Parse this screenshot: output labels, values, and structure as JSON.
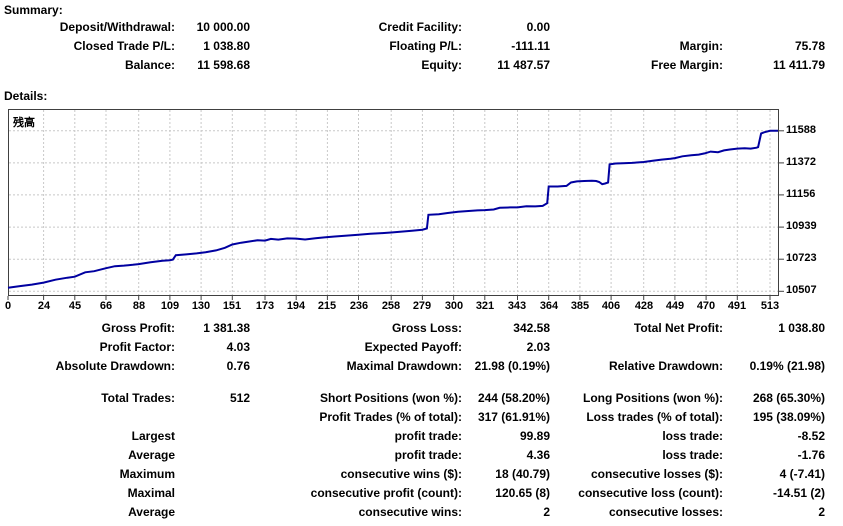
{
  "summary": {
    "heading": "Summary:",
    "rows": [
      {
        "c1l": "Deposit/Withdrawal:",
        "c1v": "10 000.00",
        "c2l": "Credit Facility:",
        "c2v": "0.00",
        "c3l": "",
        "c3v": ""
      },
      {
        "c1l": "Closed Trade P/L:",
        "c1v": "1 038.80",
        "c2l": "Floating P/L:",
        "c2v": "-111.11",
        "c3l": "Margin:",
        "c3v": "75.78"
      },
      {
        "c1l": "Balance:",
        "c1v": "11 598.68",
        "c2l": "Equity:",
        "c2v": "11 487.57",
        "c3l": "Free Margin:",
        "c3v": "11 411.79"
      }
    ]
  },
  "details": {
    "heading": "Details:",
    "block1": [
      {
        "c1l": "Gross Profit:",
        "c1v": "1 381.38",
        "c2l": "Gross Loss:",
        "c2v": "342.58",
        "c3l": "Total Net Profit:",
        "c3v": "1 038.80"
      },
      {
        "c1l": "Profit Factor:",
        "c1v": "4.03",
        "c2l": "Expected Payoff:",
        "c2v": "2.03",
        "c3l": "",
        "c3v": ""
      },
      {
        "c1l": "Absolute Drawdown:",
        "c1v": "0.76",
        "c2l": "Maximal Drawdown:",
        "c2v": "21.98 (0.19%)",
        "c3l": "Relative Drawdown:",
        "c3v": "0.19% (21.98)"
      }
    ],
    "block2": [
      {
        "c1l": "Total Trades:",
        "c1v": "512",
        "c2l": "Short Positions (won %):",
        "c2v": "244 (58.20%)",
        "c3l": "Long Positions (won %):",
        "c3v": "268 (65.30%)"
      },
      {
        "c1l": "",
        "c1v": "",
        "c2l": "Profit Trades (% of total):",
        "c2v": "317 (61.91%)",
        "c3l": "Loss trades (% of total):",
        "c3v": "195 (38.09%)"
      },
      {
        "c1l": "Largest",
        "c1v": "",
        "c2l": "profit trade:",
        "c2v": "99.89",
        "c3l": "loss trade:",
        "c3v": "-8.52"
      },
      {
        "c1l": "Average",
        "c1v": "",
        "c2l": "profit trade:",
        "c2v": "4.36",
        "c3l": "loss trade:",
        "c3v": "-1.76"
      },
      {
        "c1l": "Maximum",
        "c1v": "",
        "c2l": "consecutive wins ($):",
        "c2v": "18 (40.79)",
        "c3l": "consecutive losses ($):",
        "c3v": "4 (-7.41)"
      },
      {
        "c1l": "Maximal",
        "c1v": "",
        "c2l": "consecutive profit (count):",
        "c2v": "120.65 (8)",
        "c3l": "consecutive loss (count):",
        "c3v": "-14.51 (2)"
      },
      {
        "c1l": "Average",
        "c1v": "",
        "c2l": "consecutive wins:",
        "c2v": "2",
        "c3l": "consecutive losses:",
        "c3v": "2"
      }
    ]
  },
  "chart_data": {
    "type": "line",
    "title": "残高",
    "series_name": "Balance",
    "xlim": [
      0,
      513
    ],
    "ylim": [
      10475,
      11735
    ],
    "x_ticks": [
      0,
      24,
      45,
      66,
      88,
      109,
      130,
      151,
      173,
      194,
      215,
      236,
      258,
      279,
      300,
      321,
      343,
      364,
      385,
      406,
      428,
      449,
      470,
      491,
      513
    ],
    "y_ticks": [
      11588,
      11372,
      11156,
      10939,
      10723,
      10507
    ],
    "grid": true,
    "legend_position": "none",
    "line_color": "#0000A0",
    "grid_color": "#C8C8C8",
    "border_color": "#404040",
    "points": [
      [
        0,
        10530
      ],
      [
        8,
        10542
      ],
      [
        16,
        10552
      ],
      [
        24,
        10565
      ],
      [
        32,
        10585
      ],
      [
        40,
        10598
      ],
      [
        45,
        10605
      ],
      [
        52,
        10635
      ],
      [
        58,
        10642
      ],
      [
        66,
        10662
      ],
      [
        72,
        10676
      ],
      [
        78,
        10680
      ],
      [
        84,
        10685
      ],
      [
        88,
        10690
      ],
      [
        96,
        10702
      ],
      [
        104,
        10712
      ],
      [
        109,
        10716
      ],
      [
        111,
        10720
      ],
      [
        113,
        10750
      ],
      [
        120,
        10755
      ],
      [
        127,
        10762
      ],
      [
        133,
        10770
      ],
      [
        140,
        10782
      ],
      [
        146,
        10800
      ],
      [
        151,
        10822
      ],
      [
        157,
        10834
      ],
      [
        163,
        10843
      ],
      [
        168,
        10850
      ],
      [
        173,
        10848
      ],
      [
        177,
        10860
      ],
      [
        182,
        10855
      ],
      [
        188,
        10863
      ],
      [
        194,
        10862
      ],
      [
        200,
        10856
      ],
      [
        207,
        10864
      ],
      [
        213,
        10870
      ],
      [
        220,
        10876
      ],
      [
        228,
        10882
      ],
      [
        236,
        10888
      ],
      [
        244,
        10895
      ],
      [
        252,
        10899
      ],
      [
        258,
        10903
      ],
      [
        265,
        10909
      ],
      [
        272,
        10915
      ],
      [
        279,
        10922
      ],
      [
        282,
        10930
      ],
      [
        283,
        11022
      ],
      [
        290,
        11026
      ],
      [
        296,
        11034
      ],
      [
        303,
        11042
      ],
      [
        310,
        11048
      ],
      [
        316,
        11052
      ],
      [
        321,
        11054
      ],
      [
        327,
        11058
      ],
      [
        331,
        11069
      ],
      [
        338,
        11072
      ],
      [
        343,
        11072
      ],
      [
        349,
        11080
      ],
      [
        355,
        11079
      ],
      [
        360,
        11082
      ],
      [
        363,
        11100
      ],
      [
        364,
        11213
      ],
      [
        370,
        11213
      ],
      [
        376,
        11217
      ],
      [
        379,
        11240
      ],
      [
        383,
        11247
      ],
      [
        388,
        11250
      ],
      [
        393,
        11252
      ],
      [
        396,
        11250
      ],
      [
        398,
        11243
      ],
      [
        400,
        11228
      ],
      [
        402,
        11233
      ],
      [
        404,
        11240
      ],
      [
        405,
        11362
      ],
      [
        409,
        11368
      ],
      [
        414,
        11370
      ],
      [
        420,
        11372
      ],
      [
        428,
        11378
      ],
      [
        434,
        11386
      ],
      [
        440,
        11394
      ],
      [
        446,
        11400
      ],
      [
        449,
        11404
      ],
      [
        454,
        11416
      ],
      [
        460,
        11424
      ],
      [
        465,
        11428
      ],
      [
        469,
        11436
      ],
      [
        473,
        11448
      ],
      [
        478,
        11444
      ],
      [
        482,
        11456
      ],
      [
        486,
        11462
      ],
      [
        491,
        11468
      ],
      [
        496,
        11470
      ],
      [
        500,
        11468
      ],
      [
        504,
        11474
      ],
      [
        505,
        11478
      ],
      [
        507,
        11570
      ],
      [
        509,
        11578
      ],
      [
        513,
        11588
      ]
    ]
  }
}
